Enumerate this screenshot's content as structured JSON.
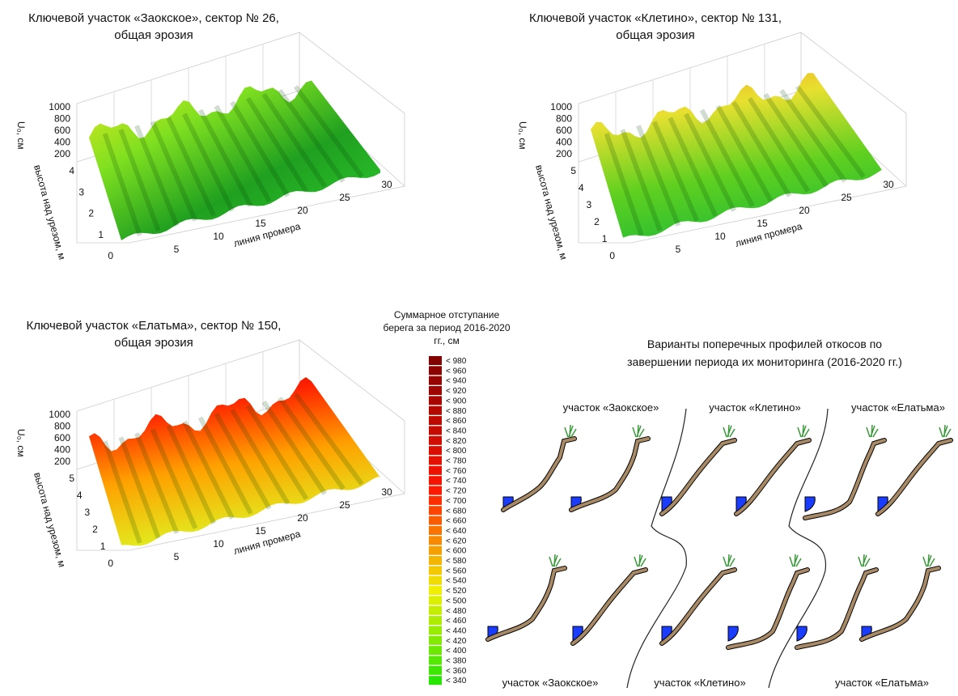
{
  "plots": [
    {
      "title": [
        "Ключевой участок «Заокское», сектор № 26,",
        "общая эрозия"
      ],
      "z_label": "U₀, см",
      "z_ticks": [
        1000,
        800,
        600,
        400,
        200
      ],
      "y_label": "высота над урезом, м",
      "y_ticks": [
        4,
        3,
        2,
        1,
        0
      ],
      "x_label": "линия промера",
      "x_ticks": [
        5,
        10,
        15,
        20,
        25,
        30
      ]
    },
    {
      "title": [
        "Ключевой участок «Клетино», сектор № 131,",
        "общая эрозия"
      ],
      "z_label": "U₀, см",
      "z_ticks": [
        1000,
        800,
        600,
        400,
        200
      ],
      "y_label": "высота над урезом, м",
      "y_ticks": [
        5,
        4,
        3,
        2,
        1,
        0
      ],
      "x_label": "линия промера",
      "x_ticks": [
        5,
        10,
        15,
        20,
        25,
        30
      ]
    },
    {
      "title": [
        "Ключевой участок «Елатьма», сектор № 150,",
        "общая эрозия"
      ],
      "z_label": "U₀, см",
      "z_ticks": [
        1000,
        800,
        600,
        400,
        200
      ],
      "y_label": "высота над урезом, м",
      "y_ticks": [
        5,
        4,
        3,
        2,
        1,
        0
      ],
      "x_label": "линия промера",
      "x_ticks": [
        5,
        10,
        15,
        20,
        25,
        30
      ]
    }
  ],
  "legend": {
    "title": [
      "Суммарное отступание",
      "берега за период 2016-2020",
      "гг., см"
    ],
    "items": [
      "< 980",
      "< 960",
      "< 940",
      "< 920",
      "< 900",
      "< 880",
      "< 860",
      "< 840",
      "< 820",
      "< 800",
      "< 780",
      "< 760",
      "< 740",
      "< 720",
      "< 700",
      "< 680",
      "< 660",
      "< 640",
      "< 620",
      "< 600",
      "< 580",
      "< 560",
      "< 540",
      "< 520",
      "< 500",
      "< 480",
      "< 460",
      "< 440",
      "< 420",
      "< 400",
      "< 380",
      "< 360",
      "< 340"
    ]
  },
  "profiles": {
    "title": [
      "Варианты поперечных профилей откосов по",
      "завершении  периода их мониторинга (2016-2020 гг.)"
    ],
    "top_labels": [
      "участок «Заокское»",
      "участок «Клетино»",
      "участок «Елатьма»"
    ],
    "bottom_labels": [
      "участок «Заокское»",
      "участок «Клетино»",
      "участок «Елатьма»"
    ]
  }
}
